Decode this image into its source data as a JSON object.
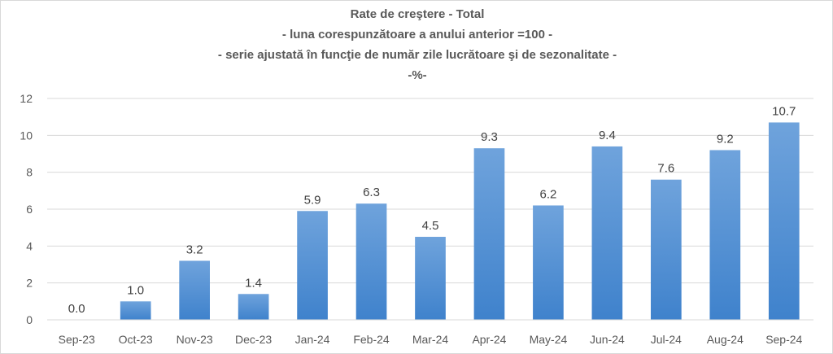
{
  "chart_data": {
    "type": "bar",
    "title_lines": [
      "Rate de creştere - Total",
      "- luna corespunzătoare a anului anterior =100 -",
      "- serie ajustată în funcţie de număr zile lucrătoare şi de sezonalitate -",
      "-%-"
    ],
    "categories": [
      "Sep-23",
      "Oct-23",
      "Nov-23",
      "Dec-23",
      "Jan-24",
      "Feb-24",
      "Mar-24",
      "Apr-24",
      "May-24",
      "Jun-24",
      "Jul-24",
      "Aug-24",
      "Sep-24"
    ],
    "values": [
      0.0,
      1.0,
      3.2,
      1.4,
      5.9,
      6.3,
      4.5,
      9.3,
      6.2,
      9.4,
      7.6,
      9.2,
      10.7
    ],
    "data_labels": [
      "0.0",
      "1.0",
      "3.2",
      "1.4",
      "5.9",
      "6.3",
      "4.5",
      "9.3",
      "6.2",
      "9.4",
      "7.6",
      "9.2",
      "10.7"
    ],
    "ylim": [
      0,
      12
    ],
    "yticks": [
      0,
      2,
      4,
      6,
      8,
      10,
      12
    ],
    "xlabel": "",
    "ylabel": "",
    "grid": true,
    "legend": "none",
    "colors": {
      "bar_top": "#6fa3dc",
      "bar_bottom": "#3f82cc",
      "grid": "#d9d9d9",
      "text": "#595959",
      "label": "#404040"
    }
  }
}
